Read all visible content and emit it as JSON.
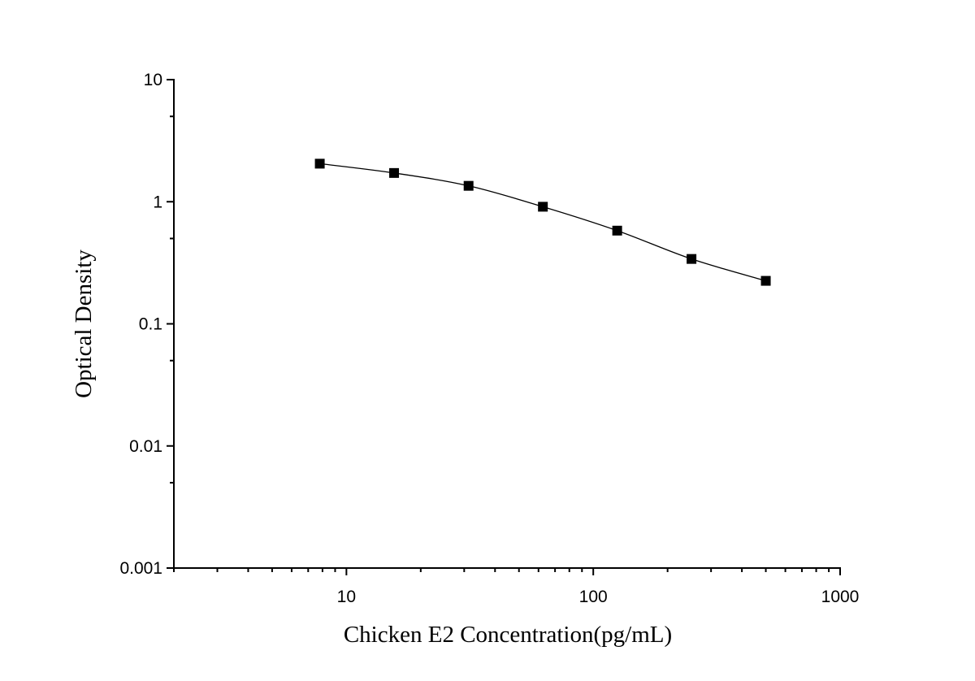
{
  "chart_data": {
    "type": "scatter",
    "title": "",
    "xlabel": "Chicken E2 Concentration(pg/mL)",
    "ylabel": "Optical Density",
    "xscale": "log",
    "yscale": "log",
    "xlim": [
      2,
      1000
    ],
    "ylim": [
      0.001,
      10
    ],
    "x_tick_labels": [
      "10",
      "100",
      "1000"
    ],
    "y_tick_labels": [
      "10",
      "1",
      "0.1",
      "0.01",
      "0.001"
    ],
    "grid": false,
    "legend": "none",
    "series": [
      {
        "marker": "square",
        "fit_curve": true,
        "x": [
          7.8,
          15.6,
          31.25,
          62.5,
          125,
          250,
          500
        ],
        "y": [
          2.05,
          1.72,
          1.35,
          0.91,
          0.58,
          0.34,
          0.225
        ]
      }
    ],
    "colors": {
      "marker": "#000000",
      "line": "#000000",
      "axis": "#000000"
    }
  }
}
